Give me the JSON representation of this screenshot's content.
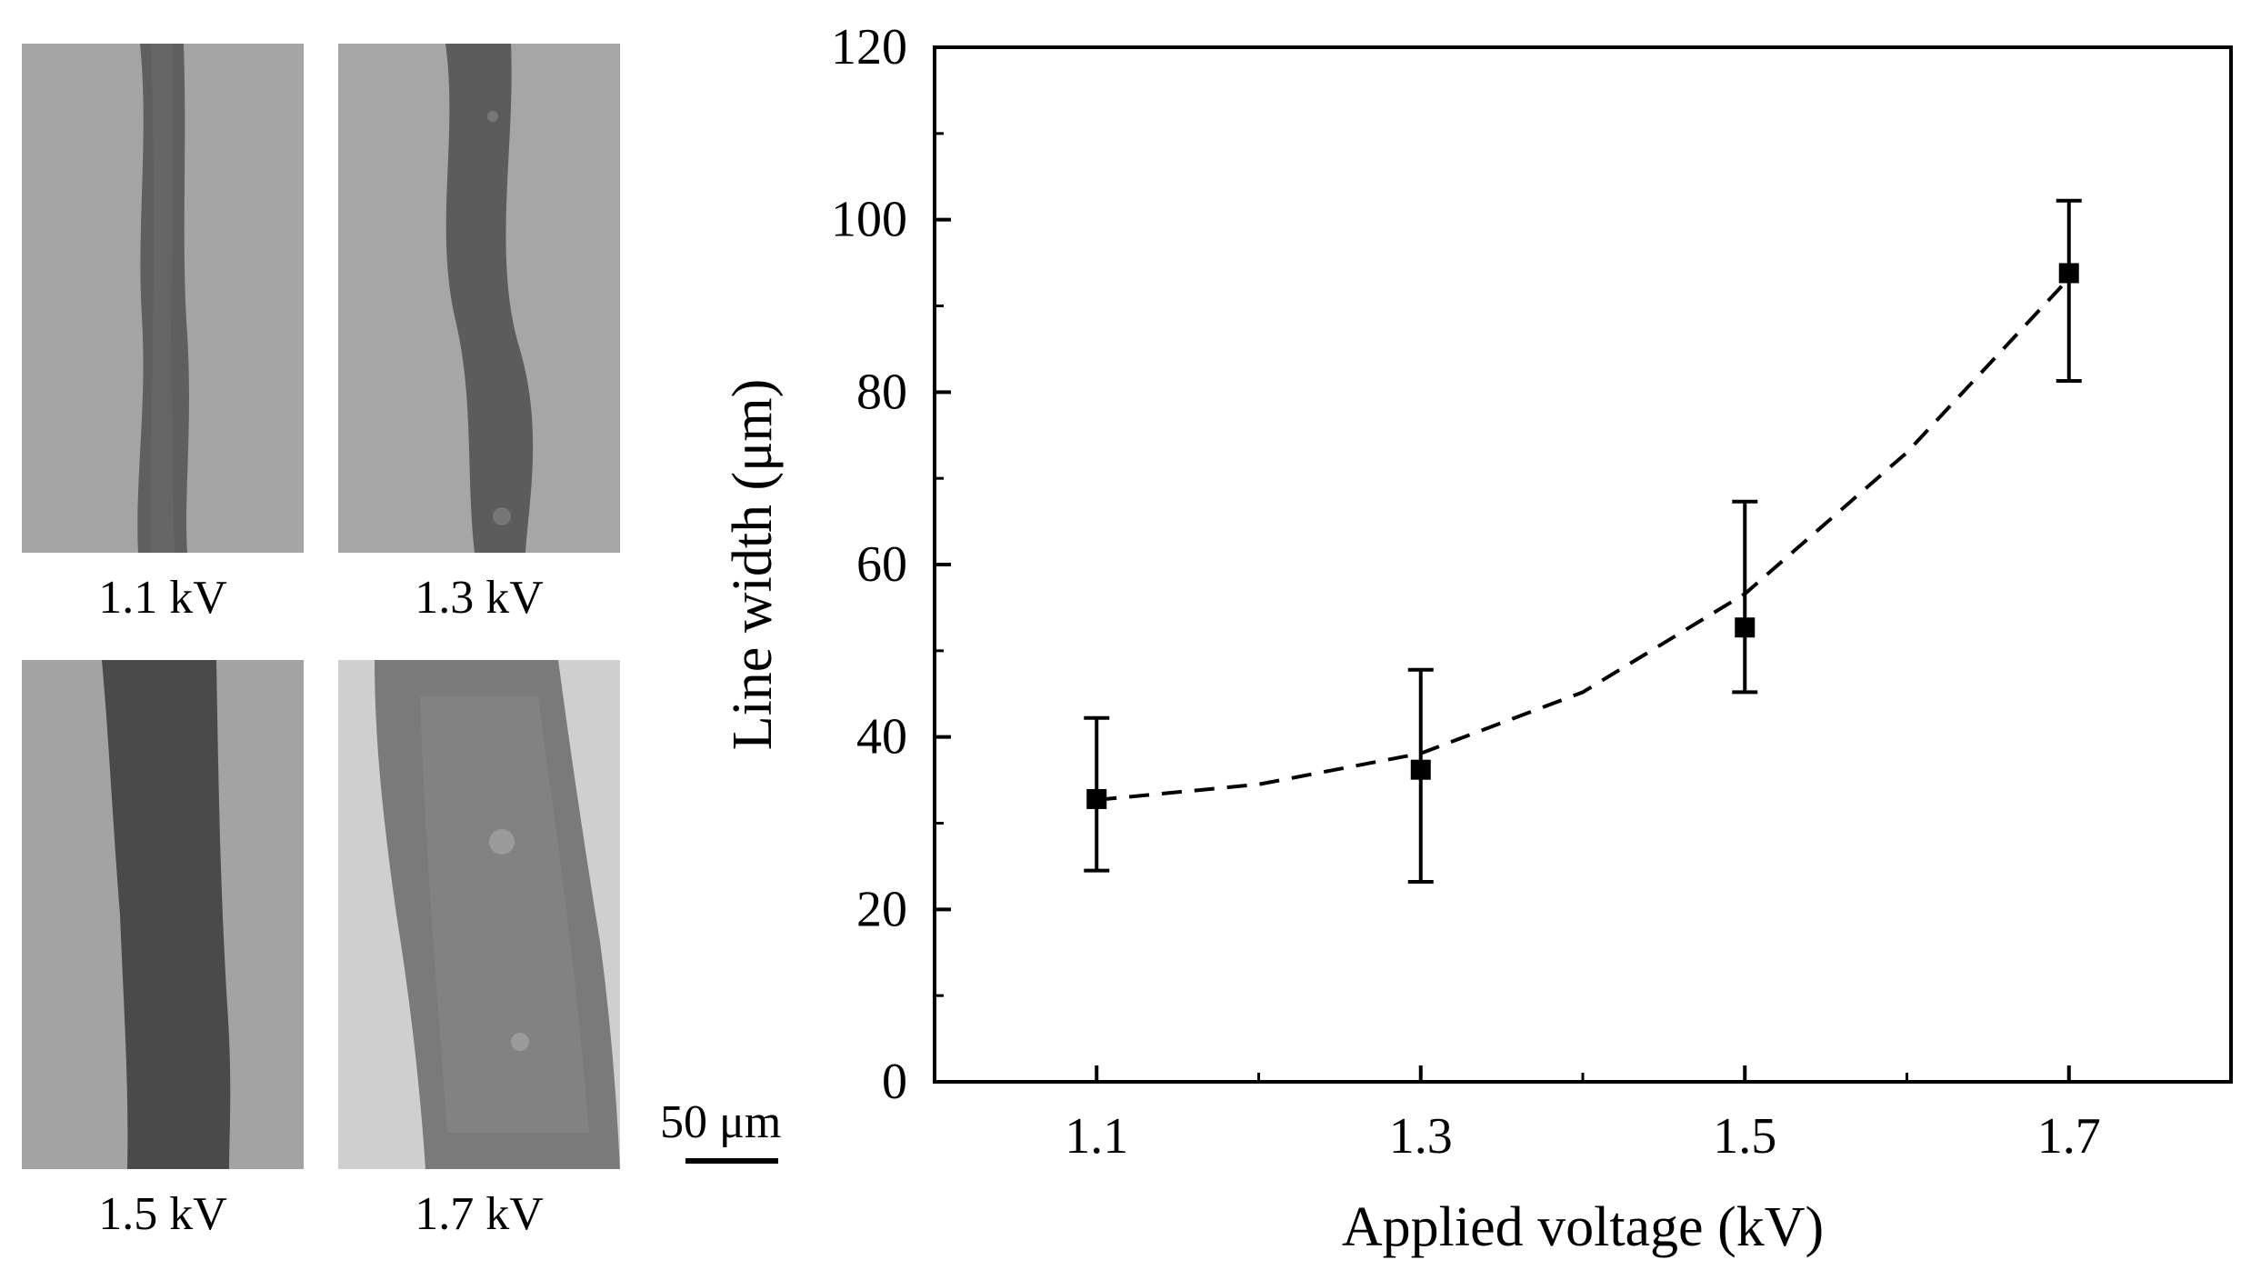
{
  "panels": [
    {
      "label": "1.1 kV"
    },
    {
      "label": "1.3 kV"
    },
    {
      "label": "1.5 kV"
    },
    {
      "label": "1.7 kV"
    }
  ],
  "scale_bar": {
    "label": "50 μm"
  },
  "colors": {
    "background_light": "#a9a9a9",
    "line_dark": "#555555",
    "marker": "#000000"
  },
  "chart_data": {
    "type": "scatter",
    "title": "",
    "xlabel": "Applied voltage (kV)",
    "ylabel": "Line width (μm)",
    "xlim": [
      1.0,
      1.8
    ],
    "ylim": [
      0,
      120
    ],
    "xticks": [
      1.1,
      1.3,
      1.5,
      1.7
    ],
    "xtick_labels": [
      "1.1",
      "1.3",
      "1.5",
      "1.7"
    ],
    "yticks": [
      0,
      20,
      40,
      60,
      80,
      100,
      120
    ],
    "ytick_labels": [
      "0",
      "20",
      "40",
      "60",
      "80",
      "100",
      "120"
    ],
    "series": [
      {
        "name": "Line width",
        "x": [
          1.1,
          1.3,
          1.5,
          1.7
        ],
        "y": [
          32.8,
          36.2,
          52.7,
          93.8
        ],
        "error_low": [
          24.5,
          23.2,
          45.2,
          81.3
        ],
        "error_high": [
          42.2,
          47.8,
          67.3,
          102.2
        ]
      }
    ],
    "fit": {
      "style": "dashed",
      "x": [
        1.1,
        1.2,
        1.3,
        1.4,
        1.5,
        1.6,
        1.7
      ],
      "y": [
        32.7,
        34.5,
        38.1,
        45.2,
        56.6,
        73.0,
        93.2
      ]
    },
    "grid": false
  }
}
